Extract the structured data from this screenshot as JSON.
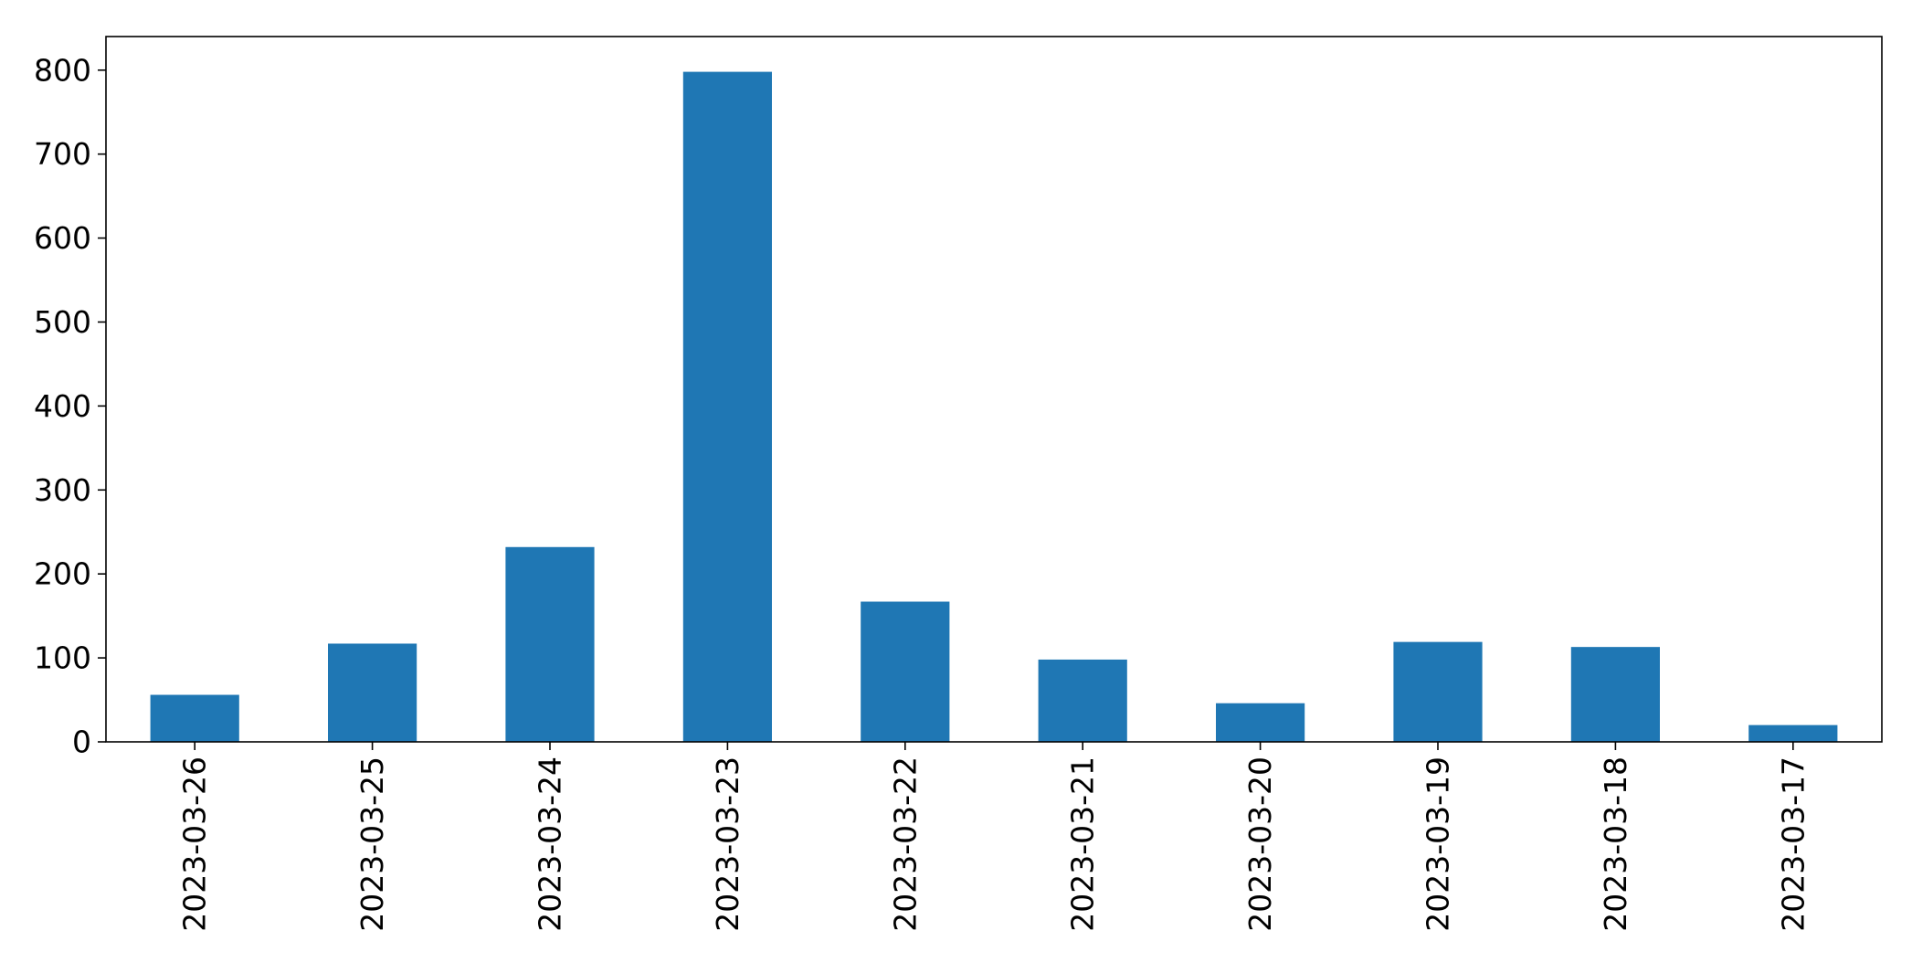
{
  "chart_data": {
    "type": "bar",
    "title": "",
    "xlabel": "",
    "ylabel": "",
    "categories": [
      "2023-03-26",
      "2023-03-25",
      "2023-03-24",
      "2023-03-23",
      "2023-03-22",
      "2023-03-21",
      "2023-03-20",
      "2023-03-19",
      "2023-03-18",
      "2023-03-17"
    ],
    "values": [
      56,
      117,
      232,
      798,
      167,
      98,
      46,
      119,
      113,
      20
    ],
    "ylim": [
      0,
      840
    ],
    "yticks": [
      0,
      100,
      200,
      300,
      400,
      500,
      600,
      700,
      800
    ],
    "grid": false,
    "legend": "none",
    "bar_color": "#1f77b4"
  }
}
